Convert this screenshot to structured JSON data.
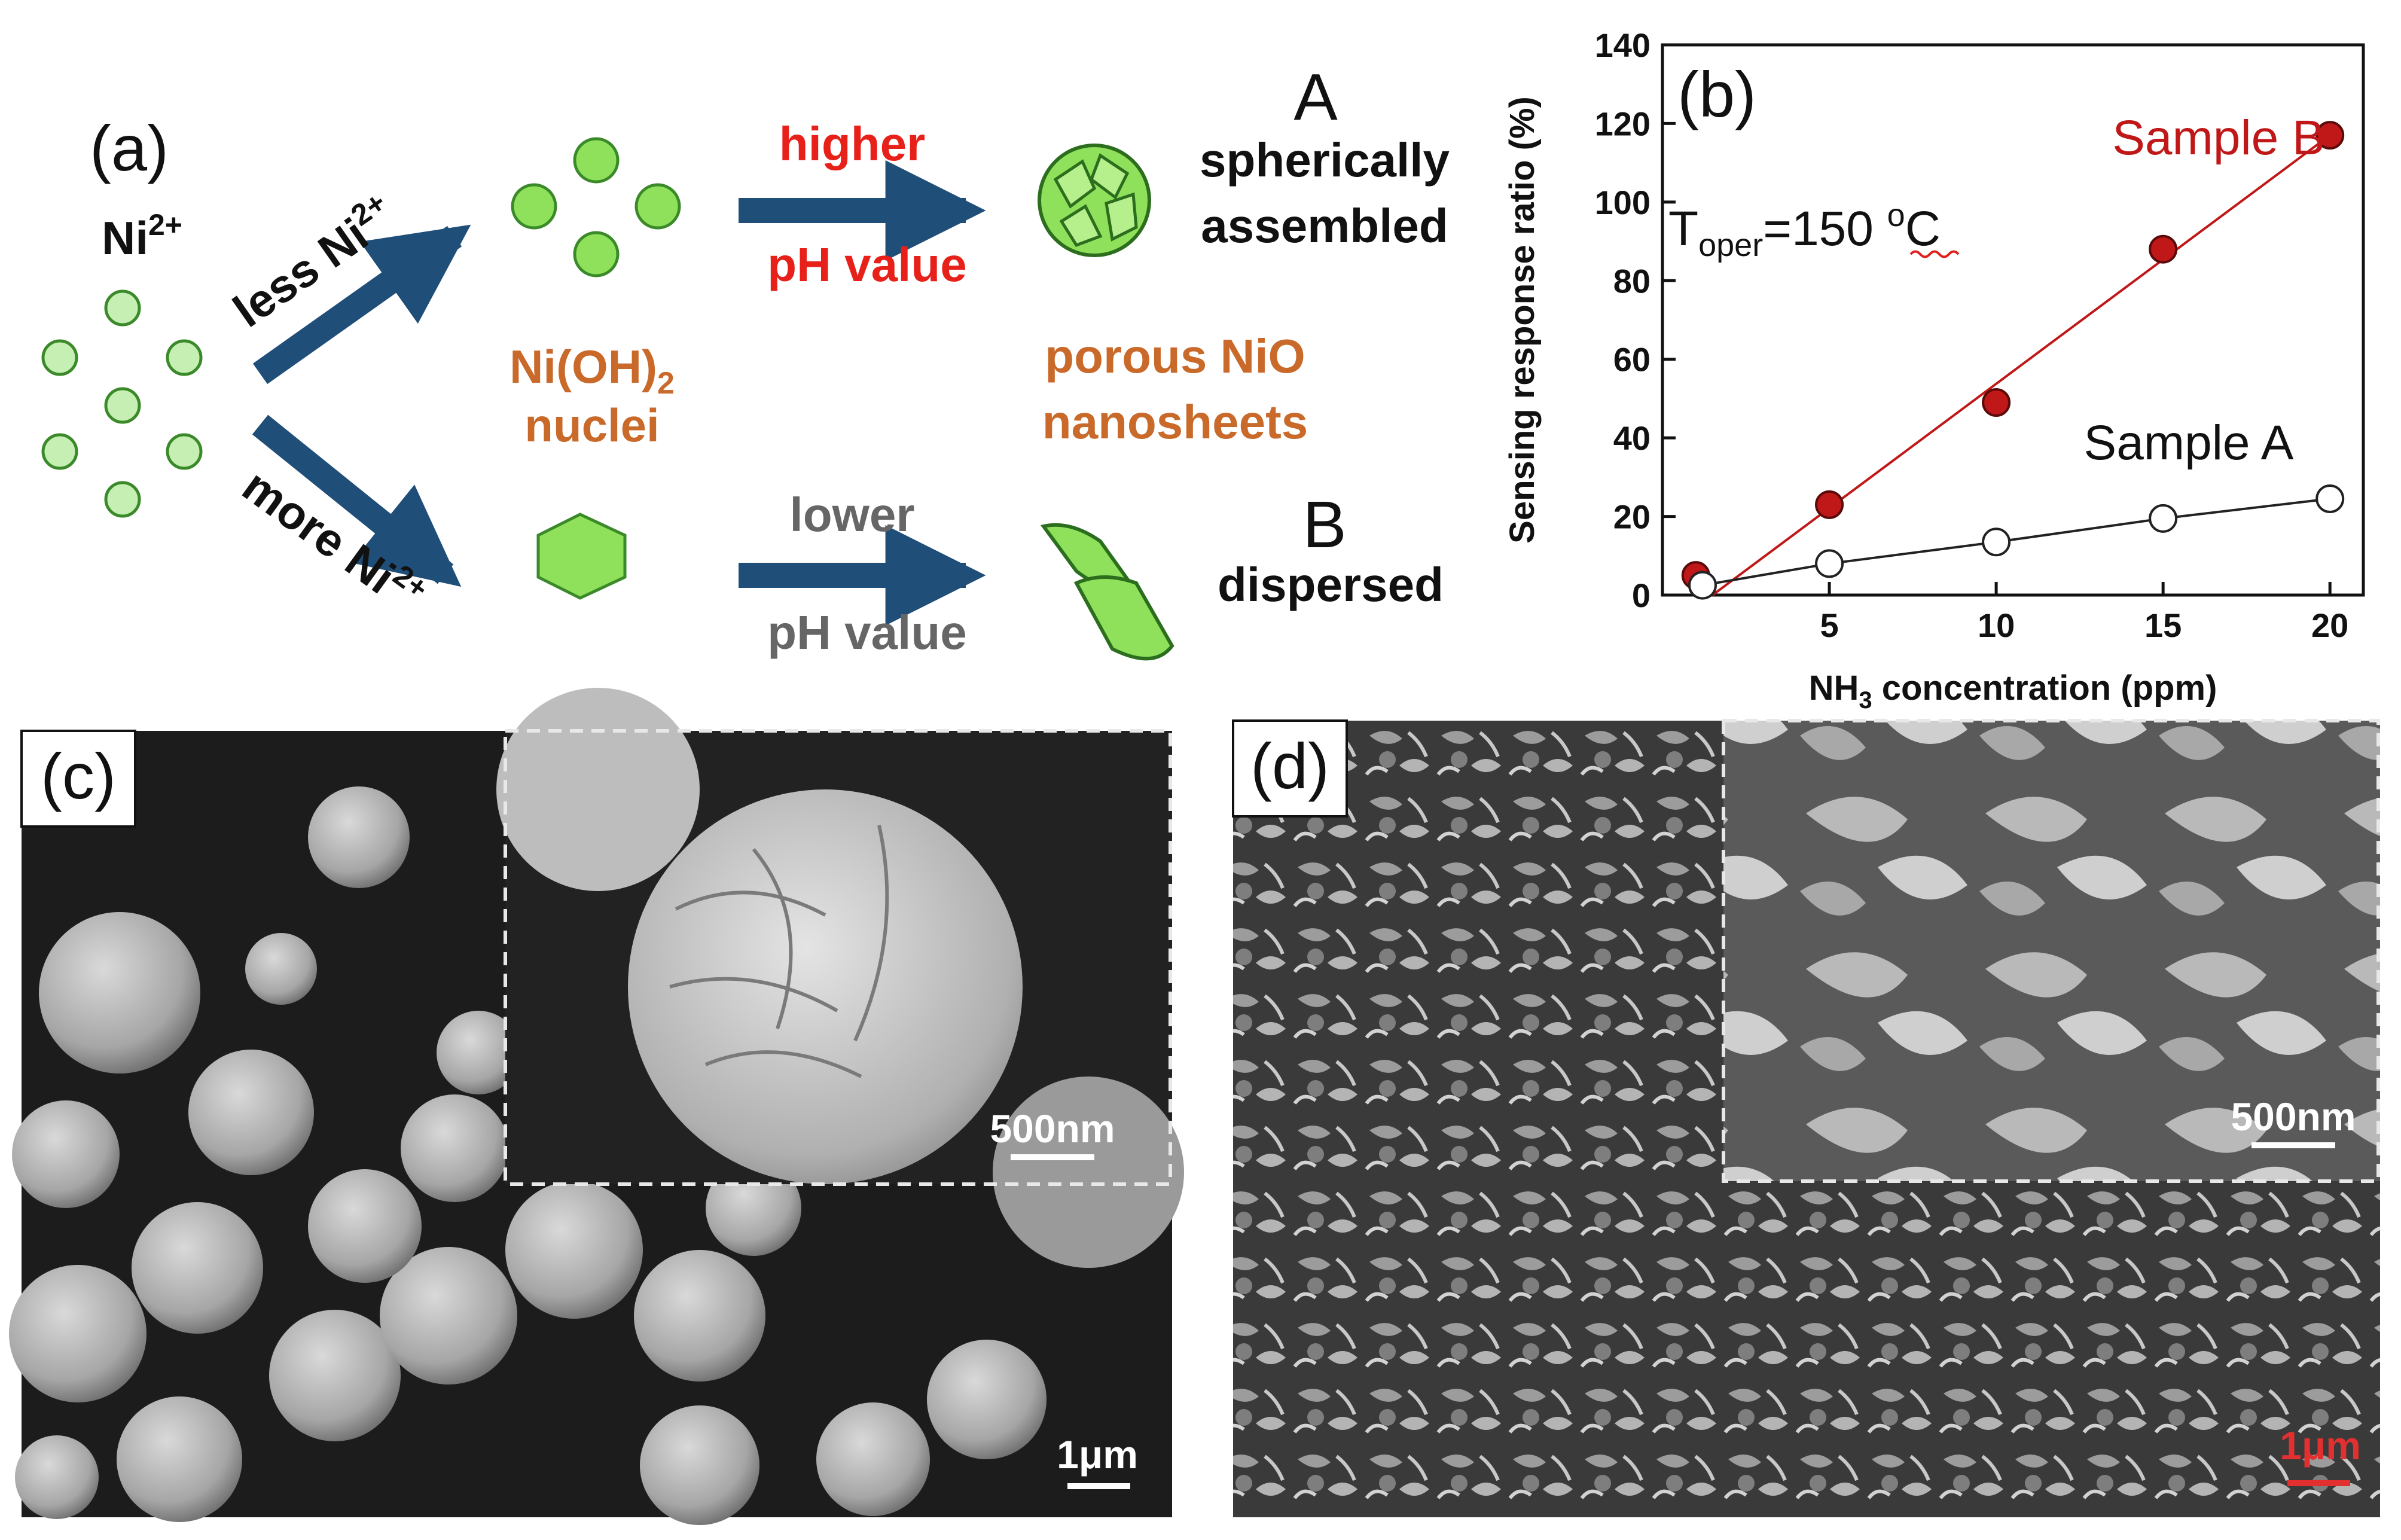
{
  "panel_a": {
    "label": "(a)",
    "ion": "Ni",
    "ion_charge": "2+",
    "path_top": {
      "prefix": "less Ni",
      "charge": "2+"
    },
    "path_bottom": {
      "prefix": "more Ni",
      "charge": "2+"
    },
    "nuclei_line1_prefix": "Ni(OH)",
    "nuclei_line1_sub": "2",
    "nuclei_line2": "nuclei",
    "higher_ph_line1": "higher",
    "higher_ph_line2": "pH value",
    "lower_ph_line1": "lower",
    "lower_ph_line2": "pH value",
    "product_line1": "porous NiO",
    "product_line2": "nanosheets",
    "sample_a_letter": "A",
    "sample_a_line1": "spherically",
    "sample_a_line2": "assembled",
    "sample_b_letter": "B",
    "sample_b_line1": "dispersed"
  },
  "panel_b": {
    "label": "(b)",
    "condition_prefix": "T",
    "condition_sub": "oper",
    "condition_value": "=150 ",
    "condition_sup": "o",
    "condition_unit": "C"
  },
  "panel_c": {
    "label": "(c)",
    "inset_scale": "500nm",
    "main_scale": "1μm"
  },
  "panel_d": {
    "label": "(d)",
    "inset_scale": "500nm",
    "main_scale": "1μm"
  },
  "chart_data": {
    "type": "line",
    "xlabel_prefix": "NH",
    "xlabel_sub": "3",
    "xlabel_suffix": " concentration (ppm)",
    "ylabel": "Sensing response ratio (%)",
    "xlim": [
      0,
      21
    ],
    "ylim": [
      0,
      140
    ],
    "xticks": [
      5,
      10,
      15,
      20
    ],
    "yticks": [
      0,
      20,
      40,
      60,
      80,
      100,
      120,
      140
    ],
    "grid": false,
    "series": [
      {
        "name": "Sample B",
        "color": "#c01818",
        "marker": "filled-circle",
        "points": [
          [
            1,
            5
          ],
          [
            5,
            23
          ],
          [
            10,
            49
          ],
          [
            15,
            88
          ],
          [
            20,
            117
          ]
        ],
        "fit_line": [
          [
            1.5,
            0
          ],
          [
            20,
            117
          ]
        ]
      },
      {
        "name": "Sample A",
        "color": "#222222",
        "marker": "open-circle",
        "points": [
          [
            1.2,
            2.5
          ],
          [
            5,
            8
          ],
          [
            10,
            13.5
          ],
          [
            15,
            19.5
          ],
          [
            20,
            24.5
          ]
        ]
      }
    ]
  }
}
